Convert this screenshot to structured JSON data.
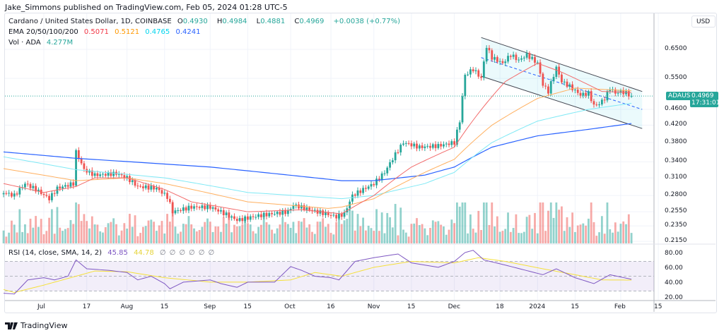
{
  "header": {
    "published": "Jake_Simmons published on TradingView.com, Feb 05, 2024 01:28 UTC-5"
  },
  "legend": {
    "symbol": "Cardano / United States Dollar, 1D, COINBASE",
    "o_label": "O",
    "o": "0.4930",
    "h_label": "H",
    "h": "0.4984",
    "l_label": "L",
    "l": "0.4881",
    "c_label": "C",
    "c": "0.4969",
    "change": "+0.0038 (+0.77%)",
    "ema_label": "EMA 20/50/100/200",
    "ema20": "0.5071",
    "ema50": "0.5121",
    "ema100": "0.4765",
    "ema200": "0.4241",
    "vol_label": "Vol · ADA",
    "vol": "4.277M",
    "rsi_label": "RSI (14, close, SMA, 14, 2)",
    "rsi": "45.85",
    "rsi_sma": "44.78",
    "rsi_na": [
      "∅",
      "∅",
      "∅",
      "∅",
      "∅",
      "∅"
    ]
  },
  "price_axis": {
    "currency": "USD",
    "ticks": [
      "0.6500",
      "0.5500",
      "0.4600",
      "0.4200",
      "0.3800",
      "0.3400",
      "0.3100",
      "0.2800",
      "0.2550",
      "0.2350",
      "0.2150"
    ],
    "scale": "log"
  },
  "rsi_axis": {
    "ticks": [
      "80.00",
      "60.00",
      "40.00",
      "20.00"
    ]
  },
  "last_price": {
    "symbol": "ADAUSD",
    "price": "0.4969",
    "countdown": "17:31:01"
  },
  "time_axis": [
    [
      "2023-07-01",
      "Jul"
    ],
    [
      "2023-07-17",
      "17"
    ],
    [
      "2023-08-01",
      "Aug"
    ],
    [
      "2023-08-15",
      "15"
    ],
    [
      "2023-09-01",
      "Sep"
    ],
    [
      "2023-09-15",
      "15"
    ],
    [
      "2023-10-01",
      "Oct"
    ],
    [
      "2023-10-16",
      "16"
    ],
    [
      "2023-11-01",
      "Nov"
    ],
    [
      "2023-11-15",
      "15"
    ],
    [
      "2023-12-01",
      "Dec"
    ],
    [
      "2023-12-18",
      "18"
    ],
    [
      "2024-01-01",
      "2024"
    ],
    [
      "2024-01-15",
      "15"
    ],
    [
      "2024-02-01",
      "Feb"
    ],
    [
      "2024-02-15",
      "15"
    ]
  ],
  "footer": {
    "brand": "TradingView"
  },
  "colors": {
    "up": "#26a69a",
    "down": "#ef5350",
    "ema20": "#f23645",
    "ema50": "#ff9800",
    "ema100": "#00e5ff",
    "ema200": "#2962ff",
    "rsi": "#7e57c2",
    "rsi_sma": "#ffeb3b"
  },
  "chart_data": {
    "type": "candlestick",
    "ylim": [
      0.21,
      0.72
    ],
    "close_anchors": [
      [
        "2023-06-16",
        0.285
      ],
      [
        "2023-06-20",
        0.28
      ],
      [
        "2023-06-24",
        0.3
      ],
      [
        "2023-06-28",
        0.29
      ],
      [
        "2023-07-03",
        0.275
      ],
      [
        "2023-07-06",
        0.292
      ],
      [
        "2023-07-12",
        0.3
      ],
      [
        "2023-07-13",
        0.36
      ],
      [
        "2023-07-16",
        0.325
      ],
      [
        "2023-07-20",
        0.315
      ],
      [
        "2023-07-28",
        0.318
      ],
      [
        "2023-08-01",
        0.31
      ],
      [
        "2023-08-05",
        0.295
      ],
      [
        "2023-08-12",
        0.292
      ],
      [
        "2023-08-16",
        0.278
      ],
      [
        "2023-08-18",
        0.255
      ],
      [
        "2023-08-25",
        0.262
      ],
      [
        "2023-09-01",
        0.262
      ],
      [
        "2023-09-05",
        0.255
      ],
      [
        "2023-09-11",
        0.243
      ],
      [
        "2023-09-20",
        0.25
      ],
      [
        "2023-09-30",
        0.255
      ],
      [
        "2023-10-02",
        0.265
      ],
      [
        "2023-10-10",
        0.256
      ],
      [
        "2023-10-18",
        0.248
      ],
      [
        "2023-10-21",
        0.252
      ],
      [
        "2023-10-24",
        0.28
      ],
      [
        "2023-10-28",
        0.29
      ],
      [
        "2023-11-01",
        0.3
      ],
      [
        "2023-11-05",
        0.32
      ],
      [
        "2023-11-09",
        0.355
      ],
      [
        "2023-11-12",
        0.38
      ],
      [
        "2023-11-18",
        0.37
      ],
      [
        "2023-11-25",
        0.373
      ],
      [
        "2023-12-01",
        0.38
      ],
      [
        "2023-12-03",
        0.43
      ],
      [
        "2023-12-05",
        0.56
      ],
      [
        "2023-12-08",
        0.58
      ],
      [
        "2023-12-11",
        0.55
      ],
      [
        "2023-12-13",
        0.66
      ],
      [
        "2023-12-15",
        0.62
      ],
      [
        "2023-12-19",
        0.6
      ],
      [
        "2023-12-22",
        0.63
      ],
      [
        "2023-12-25",
        0.61
      ],
      [
        "2023-12-28",
        0.63
      ],
      [
        "2024-01-01",
        0.6
      ],
      [
        "2024-01-03",
        0.53
      ],
      [
        "2024-01-05",
        0.51
      ],
      [
        "2024-01-08",
        0.585
      ],
      [
        "2024-01-10",
        0.54
      ],
      [
        "2024-01-13",
        0.525
      ],
      [
        "2024-01-17",
        0.5
      ],
      [
        "2024-01-20",
        0.505
      ],
      [
        "2024-01-22",
        0.47
      ],
      [
        "2024-01-24",
        0.475
      ],
      [
        "2024-01-26",
        0.49
      ],
      [
        "2024-01-28",
        0.52
      ],
      [
        "2024-01-30",
        0.505
      ],
      [
        "2024-02-01",
        0.51
      ],
      [
        "2024-02-03",
        0.505
      ],
      [
        "2024-02-05",
        0.4969
      ]
    ],
    "ema_anchors": {
      "ema20": [
        [
          "2023-06-16",
          0.3
        ],
        [
          "2023-07-01",
          0.285
        ],
        [
          "2023-07-13",
          0.295
        ],
        [
          "2023-07-20",
          0.31
        ],
        [
          "2023-08-01",
          0.31
        ],
        [
          "2023-08-15",
          0.29
        ],
        [
          "2023-08-25",
          0.27
        ],
        [
          "2023-09-15",
          0.255
        ],
        [
          "2023-10-05",
          0.258
        ],
        [
          "2023-10-20",
          0.252
        ],
        [
          "2023-11-01",
          0.28
        ],
        [
          "2023-11-15",
          0.33
        ],
        [
          "2023-12-01",
          0.37
        ],
        [
          "2023-12-10",
          0.45
        ],
        [
          "2023-12-20",
          0.54
        ],
        [
          "2024-01-01",
          0.6
        ],
        [
          "2024-01-10",
          0.57
        ],
        [
          "2024-01-25",
          0.51
        ],
        [
          "2024-02-05",
          0.5071
        ]
      ],
      "ema50": [
        [
          "2023-06-16",
          0.327
        ],
        [
          "2023-07-13",
          0.305
        ],
        [
          "2023-08-01",
          0.31
        ],
        [
          "2023-08-15",
          0.3
        ],
        [
          "2023-09-15",
          0.27
        ],
        [
          "2023-10-15",
          0.26
        ],
        [
          "2023-10-20",
          0.262
        ],
        [
          "2023-11-01",
          0.275
        ],
        [
          "2023-11-20",
          0.32
        ],
        [
          "2023-12-01",
          0.345
        ],
        [
          "2023-12-15",
          0.42
        ],
        [
          "2024-01-01",
          0.49
        ],
        [
          "2024-01-15",
          0.52
        ],
        [
          "2024-02-05",
          0.5121
        ]
      ],
      "ema100": [
        [
          "2023-06-16",
          0.35
        ],
        [
          "2023-07-13",
          0.325
        ],
        [
          "2023-08-15",
          0.31
        ],
        [
          "2023-09-15",
          0.285
        ],
        [
          "2023-10-20",
          0.275
        ],
        [
          "2023-11-01",
          0.28
        ],
        [
          "2023-11-20",
          0.3
        ],
        [
          "2023-12-01",
          0.32
        ],
        [
          "2023-12-15",
          0.38
        ],
        [
          "2024-01-01",
          0.43
        ],
        [
          "2024-01-20",
          0.46
        ],
        [
          "2024-02-05",
          0.4765
        ]
      ],
      "ema200": [
        [
          "2023-06-16",
          0.36
        ],
        [
          "2023-07-13",
          0.347
        ],
        [
          "2023-09-01",
          0.33
        ],
        [
          "2023-10-20",
          0.305
        ],
        [
          "2023-11-01",
          0.305
        ],
        [
          "2023-11-20",
          0.315
        ],
        [
          "2023-12-01",
          0.33
        ],
        [
          "2023-12-15",
          0.37
        ],
        [
          "2024-01-01",
          0.395
        ],
        [
          "2024-01-20",
          0.41
        ],
        [
          "2024-02-05",
          0.4241
        ]
      ]
    },
    "channel": {
      "upper": [
        [
          "2023-12-11",
          0.696
        ],
        [
          "2024-02-09",
          0.51
        ]
      ],
      "middle": [
        [
          "2023-12-11",
          0.62
        ],
        [
          "2024-02-09",
          0.46
        ]
      ],
      "lower": [
        [
          "2023-12-11",
          0.557
        ],
        [
          "2024-02-09",
          0.412
        ]
      ]
    },
    "rsi_anchors": [
      [
        "2023-06-16",
        27
      ],
      [
        "2023-06-20",
        26
      ],
      [
        "2023-06-25",
        45
      ],
      [
        "2023-07-01",
        48
      ],
      [
        "2023-07-05",
        45
      ],
      [
        "2023-07-10",
        50
      ],
      [
        "2023-07-13",
        72
      ],
      [
        "2023-07-17",
        60
      ],
      [
        "2023-07-25",
        58
      ],
      [
        "2023-08-01",
        55
      ],
      [
        "2023-08-05",
        45
      ],
      [
        "2023-08-10",
        50
      ],
      [
        "2023-08-15",
        40
      ],
      [
        "2023-08-17",
        33
      ],
      [
        "2023-08-22",
        42
      ],
      [
        "2023-09-01",
        45
      ],
      [
        "2023-09-05",
        40
      ],
      [
        "2023-09-11",
        35
      ],
      [
        "2023-09-15",
        42
      ],
      [
        "2023-09-25",
        42
      ],
      [
        "2023-10-01",
        63
      ],
      [
        "2023-10-05",
        58
      ],
      [
        "2023-10-10",
        50
      ],
      [
        "2023-10-16",
        48
      ],
      [
        "2023-10-19",
        45
      ],
      [
        "2023-10-25",
        70
      ],
      [
        "2023-11-01",
        75
      ],
      [
        "2023-11-10",
        80
      ],
      [
        "2023-11-15",
        68
      ],
      [
        "2023-11-25",
        62
      ],
      [
        "2023-12-01",
        70
      ],
      [
        "2023-12-05",
        82
      ],
      [
        "2023-12-08",
        85
      ],
      [
        "2023-12-12",
        72
      ],
      [
        "2023-12-20",
        65
      ],
      [
        "2024-01-03",
        52
      ],
      [
        "2024-01-08",
        60
      ],
      [
        "2024-01-15",
        48
      ],
      [
        "2024-01-22",
        40
      ],
      [
        "2024-01-28",
        52
      ],
      [
        "2024-02-05",
        45.85
      ]
    ],
    "rsi_sma_anchors": [
      [
        "2023-06-16",
        32
      ],
      [
        "2023-06-20",
        28
      ],
      [
        "2023-07-01",
        38
      ],
      [
        "2023-07-13",
        50
      ],
      [
        "2023-07-20",
        57
      ],
      [
        "2023-08-01",
        56
      ],
      [
        "2023-08-15",
        48
      ],
      [
        "2023-09-01",
        42
      ],
      [
        "2023-09-15",
        42
      ],
      [
        "2023-10-01",
        45
      ],
      [
        "2023-10-10",
        55
      ],
      [
        "2023-10-20",
        50
      ],
      [
        "2023-11-01",
        62
      ],
      [
        "2023-11-15",
        70
      ],
      [
        "2023-12-01",
        68
      ],
      [
        "2023-12-10",
        75
      ],
      [
        "2023-12-20",
        70
      ],
      [
        "2024-01-03",
        60
      ],
      [
        "2024-01-15",
        52
      ],
      [
        "2024-01-25",
        45
      ],
      [
        "2024-02-05",
        44.78
      ]
    ],
    "rsi_band": [
      30,
      70
    ]
  }
}
